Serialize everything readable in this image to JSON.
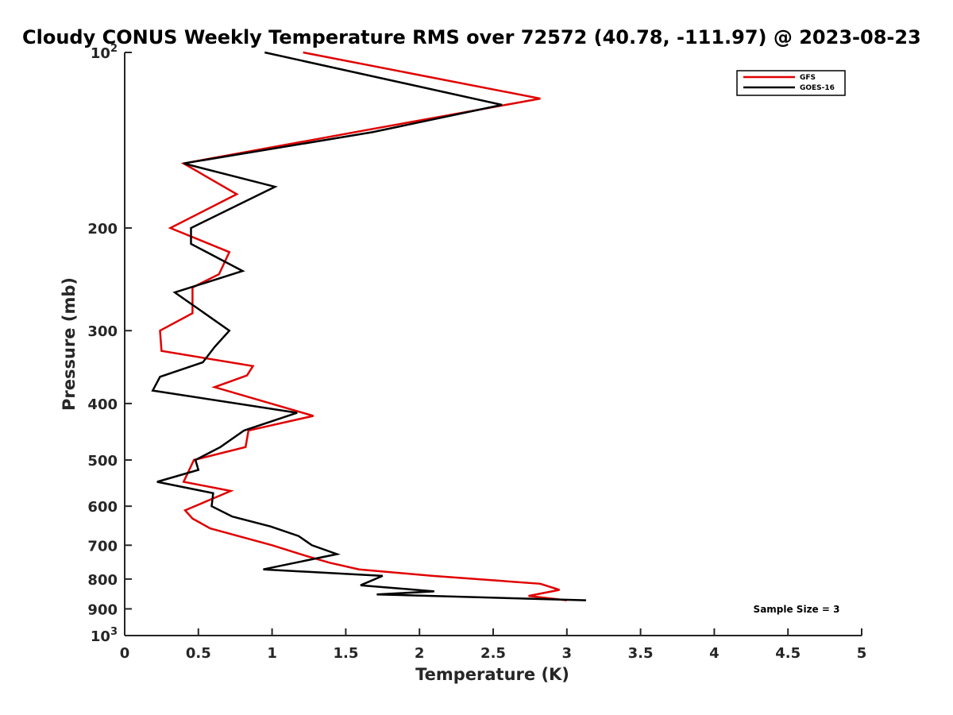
{
  "chart_data": {
    "type": "line",
    "title": "Cloudy CONUS Weekly Temperature RMS over 72572 (40.78, -111.97) @ 2023-08-23",
    "xlabel": "Temperature (K)",
    "ylabel": "Pressure (mb)",
    "xlim": [
      0,
      5
    ],
    "ylim": [
      100,
      1000
    ],
    "yscale": "log",
    "y_reversed": true,
    "grid": false,
    "legend_position": "top-right",
    "x_ticks": [
      "0",
      "0.5",
      "1",
      "1.5",
      "2",
      "2.5",
      "3",
      "3.5",
      "4",
      "4.5",
      "5"
    ],
    "x_tick_values": [
      0,
      0.5,
      1,
      1.5,
      2,
      2.5,
      3,
      3.5,
      4,
      4.5,
      5
    ],
    "y_ticks": [
      {
        "value": 100,
        "base": "10",
        "exp": "2"
      },
      {
        "value": 200,
        "label": "200"
      },
      {
        "value": 300,
        "label": "300"
      },
      {
        "value": 400,
        "label": "400"
      },
      {
        "value": 500,
        "label": "500"
      },
      {
        "value": 600,
        "label": "600"
      },
      {
        "value": 700,
        "label": "700"
      },
      {
        "value": 800,
        "label": "800"
      },
      {
        "value": 900,
        "label": "900"
      },
      {
        "value": 1000,
        "base": "10",
        "exp": "3"
      }
    ],
    "annotation": "Sample Size = 3",
    "series": [
      {
        "name": "GFS",
        "color": "#e00000",
        "x": [
          1.21,
          2.82,
          1.7,
          0.4,
          0.76,
          0.31,
          0.71,
          0.64,
          0.46,
          0.46,
          0.24,
          0.25,
          0.87,
          0.83,
          0.61,
          1.28,
          0.84,
          0.82,
          0.47,
          0.4,
          0.72,
          0.41,
          0.46,
          0.58,
          1.0,
          1.23,
          1.39,
          1.59,
          2.09,
          2.82,
          2.95,
          2.74,
          3.0
        ],
        "y": [
          100,
          120,
          135,
          155,
          175,
          200,
          220,
          240,
          253,
          280,
          300,
          325,
          345,
          358,
          375,
          420,
          445,
          475,
          500,
          545,
          565,
          610,
          630,
          655,
          700,
          730,
          750,
          770,
          790,
          815,
          835,
          855,
          870
        ]
      },
      {
        "name": "GOES-16",
        "color": "#000000",
        "x": [
          0.95,
          2.56,
          1.68,
          0.4,
          1.02,
          0.45,
          0.45,
          0.8,
          0.34,
          0.71,
          0.61,
          0.53,
          0.24,
          0.19,
          1.17,
          0.81,
          0.65,
          0.48,
          0.5,
          0.22,
          0.6,
          0.59,
          0.73,
          0.99,
          1.18,
          1.27,
          1.44,
          0.94,
          1.75,
          1.6,
          2.1,
          1.71,
          3.13
        ],
        "y": [
          100,
          123,
          137,
          155,
          170,
          200,
          213,
          237,
          258,
          300,
          320,
          340,
          360,
          380,
          415,
          445,
          475,
          500,
          520,
          545,
          570,
          600,
          625,
          650,
          675,
          700,
          725,
          770,
          790,
          820,
          840,
          850,
          870
        ]
      }
    ]
  }
}
